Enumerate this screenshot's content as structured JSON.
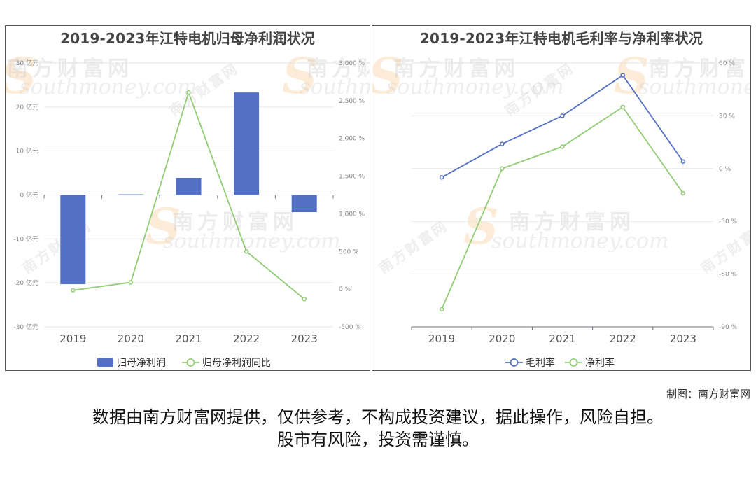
{
  "watermark": {
    "brand": "南方财富网",
    "domain": "southmoney.com"
  },
  "credit": "制图：南方财富网",
  "disclaimer": {
    "line1": "数据由南方财富网提供，仅供参考，不构成投资建议，据此操作，风险自担。",
    "line2": "股市有风险，投资需谨慎。"
  },
  "chart_data": [
    {
      "type": "bar",
      "title": "2019-2023年江特电机归母净利润状况",
      "categories": [
        "2019",
        "2020",
        "2021",
        "2022",
        "2023"
      ],
      "series": [
        {
          "name": "归母净利润",
          "type": "bar",
          "axis": "left",
          "color": "#5470c6",
          "values": [
            -20.3,
            0.15,
            3.9,
            23.3,
            -3.9
          ]
        },
        {
          "name": "归母净利润同比",
          "type": "line",
          "axis": "right",
          "color": "#91cc75",
          "values": [
            -15,
            90,
            2610,
            500,
            -130
          ]
        }
      ],
      "left_axis": {
        "min": -30,
        "max": 30,
        "step": 10,
        "unit": "亿元"
      },
      "right_axis": {
        "min": -500,
        "max": 3000,
        "step": 500,
        "unit": "%"
      },
      "grid": true,
      "legend": "bottom-center"
    },
    {
      "type": "line",
      "title": "2019-2023年江特电机毛利率与净利率状况",
      "categories": [
        "2019",
        "2020",
        "2021",
        "2022",
        "2023"
      ],
      "series": [
        {
          "name": "毛利率",
          "color": "#5470c6",
          "values": [
            -5,
            14,
            30,
            53,
            4
          ]
        },
        {
          "name": "净利率",
          "color": "#91cc75",
          "values": [
            -80,
            0,
            12.5,
            35,
            -14
          ]
        }
      ],
      "right_axis": {
        "min": -90,
        "max": 60,
        "step": 30,
        "unit": "%"
      },
      "grid": true,
      "legend": "bottom-center"
    }
  ]
}
